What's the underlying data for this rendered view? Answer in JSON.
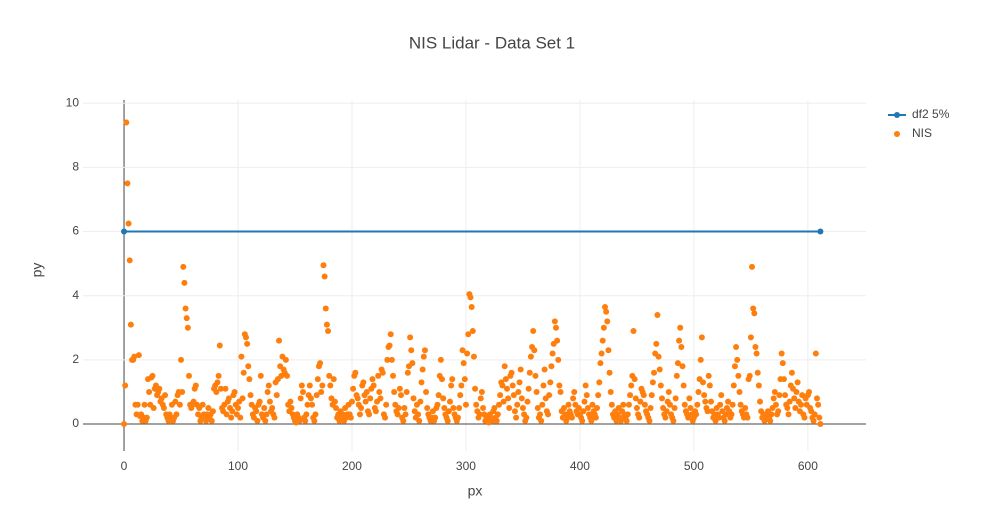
{
  "chart_data": {
    "type": "scatter",
    "title": "NIS Lidar - Data Set 1",
    "x_label": "px",
    "y_label": "py",
    "xlim": [
      -36,
      651
    ],
    "xticks": [
      0,
      100,
      200,
      300,
      400,
      500,
      600
    ],
    "ylim": [
      -0.84,
      10.1
    ],
    "yticks": [
      0,
      2,
      4,
      6,
      8,
      10
    ],
    "grid": true,
    "legend": "top-right",
    "series": [
      {
        "name": "df2 5%",
        "color": "#1f77b4",
        "mode": "lines+markers",
        "x": [
          0,
          611
        ],
        "values": [
          6,
          6
        ]
      },
      {
        "name": "NIS",
        "color": "#ff7f0e",
        "mode": "markers",
        "x": [
          0,
          1,
          2,
          3,
          4,
          5,
          6,
          7,
          8,
          9,
          10,
          11,
          12,
          13,
          14,
          15,
          16,
          17,
          18,
          19,
          20,
          21,
          22,
          23,
          24,
          25,
          26,
          27,
          28,
          29,
          30,
          31,
          32,
          33,
          34,
          35,
          36,
          37,
          38,
          39,
          40,
          41,
          42,
          43,
          44,
          45,
          46,
          47,
          48,
          49,
          50,
          51,
          52,
          53,
          54,
          55,
          56,
          57,
          58,
          59,
          60,
          61,
          62,
          63,
          64,
          65,
          66,
          67,
          68,
          69,
          70,
          71,
          72,
          73,
          74,
          75,
          76,
          77,
          78,
          79,
          80,
          81,
          82,
          83,
          84,
          85,
          86,
          87,
          88,
          89,
          90,
          91,
          92,
          93,
          94,
          95,
          96,
          97,
          98,
          99,
          100,
          101,
          102,
          103,
          104,
          105,
          106,
          107,
          108,
          109,
          110,
          111,
          112,
          113,
          114,
          115,
          116,
          117,
          118,
          119,
          120,
          121,
          122,
          123,
          124,
          125,
          126,
          127,
          128,
          129,
          130,
          131,
          132,
          133,
          134,
          135,
          136,
          137,
          138,
          139,
          140,
          141,
          142,
          143,
          144,
          145,
          146,
          147,
          148,
          149,
          150,
          151,
          152,
          153,
          154,
          155,
          156,
          157,
          158,
          159,
          160,
          161,
          162,
          163,
          164,
          165,
          166,
          167,
          168,
          169,
          170,
          171,
          172,
          173,
          174,
          175,
          176,
          177,
          178,
          179,
          180,
          181,
          182,
          183,
          184,
          185,
          186,
          187,
          188,
          189,
          190,
          191,
          192,
          193,
          194,
          195,
          196,
          197,
          198,
          199,
          200,
          201,
          202,
          203,
          204,
          205,
          206,
          207,
          208,
          209,
          210,
          211,
          212,
          213,
          214,
          215,
          216,
          217,
          218,
          219,
          220,
          221,
          222,
          223,
          224,
          225,
          226,
          227,
          228,
          229,
          230,
          231,
          232,
          233,
          234,
          235,
          236,
          237,
          238,
          239,
          240,
          241,
          242,
          243,
          244,
          245,
          246,
          247,
          248,
          249,
          250,
          251,
          252,
          253,
          254,
          255,
          256,
          257,
          258,
          259,
          260,
          261,
          262,
          263,
          264,
          265,
          266,
          267,
          268,
          269,
          270,
          271,
          272,
          273,
          274,
          275,
          276,
          277,
          278,
          279,
          280,
          281,
          282,
          283,
          284,
          285,
          286,
          287,
          288,
          289,
          290,
          291,
          292,
          293,
          294,
          295,
          296,
          297,
          298,
          299,
          300,
          301,
          302,
          303,
          304,
          305,
          306,
          307,
          308,
          309,
          310,
          311,
          312,
          313,
          314,
          315,
          316,
          317,
          318,
          319,
          320,
          321,
          322,
          323,
          324,
          325,
          326,
          327,
          328,
          329,
          330,
          331,
          332,
          333,
          334,
          335,
          336,
          337,
          338,
          339,
          340,
          341,
          342,
          343,
          344,
          345,
          346,
          347,
          348,
          349,
          350,
          351,
          352,
          353,
          354,
          355,
          356,
          357,
          358,
          359,
          360,
          361,
          362,
          363,
          364,
          365,
          366,
          367,
          368,
          369,
          370,
          371,
          372,
          373,
          374,
          375,
          376,
          377,
          378,
          379,
          380,
          381,
          382,
          383,
          384,
          385,
          386,
          387,
          388,
          389,
          390,
          391,
          392,
          393,
          394,
          395,
          396,
          397,
          398,
          399,
          400,
          401,
          402,
          403,
          404,
          405,
          406,
          407,
          408,
          409,
          410,
          411,
          412,
          413,
          414,
          415,
          416,
          417,
          418,
          419,
          420,
          421,
          422,
          423,
          424,
          425,
          426,
          427,
          428,
          429,
          430,
          431,
          432,
          433,
          434,
          435,
          436,
          437,
          438,
          439,
          440,
          441,
          442,
          443,
          444,
          445,
          446,
          447,
          448,
          449,
          450,
          451,
          452,
          453,
          454,
          455,
          456,
          457,
          458,
          459,
          460,
          461,
          462,
          463,
          464,
          465,
          466,
          467,
          468,
          469,
          470,
          471,
          472,
          473,
          474,
          475,
          476,
          477,
          478,
          479,
          480,
          481,
          482,
          483,
          484,
          485,
          486,
          487,
          488,
          489,
          490,
          491,
          492,
          493,
          494,
          495,
          496,
          497,
          498,
          499,
          500,
          501,
          502,
          503,
          504,
          505,
          506,
          507,
          508,
          509,
          510,
          511,
          512,
          513,
          514,
          515,
          516,
          517,
          518,
          519,
          520,
          521,
          522,
          523,
          524,
          525,
          526,
          527,
          528,
          529,
          530,
          531,
          532,
          533,
          534,
          535,
          536,
          537,
          538,
          539,
          540,
          541,
          542,
          543,
          544,
          545,
          546,
          547,
          548,
          549,
          550,
          551,
          552,
          553,
          554,
          555,
          556,
          557,
          558,
          559,
          560,
          561,
          562,
          563,
          564,
          565,
          566,
          567,
          568,
          569,
          570,
          571,
          572,
          573,
          574,
          575,
          576,
          577,
          578,
          579,
          580,
          581,
          582,
          583,
          584,
          585,
          586,
          587,
          588,
          589,
          590,
          591,
          592,
          593,
          594,
          595,
          596,
          597,
          598,
          599,
          600,
          601,
          602,
          603,
          604,
          605,
          606,
          607,
          608,
          609,
          610,
          611
        ],
        "values": [
          0,
          1.2,
          9.4,
          7.5,
          6.25,
          5.1,
          3.1,
          2.0,
          2.0,
          2.1,
          0.6,
          0.3,
          0.6,
          2.15,
          0.25,
          0.3,
          0.1,
          0.2,
          0.6,
          0.1,
          0.2,
          1.4,
          1.0,
          0.6,
          1.45,
          1.5,
          0.5,
          1.1,
          1.2,
          0.9,
          1.0,
          1.1,
          0.7,
          0.8,
          0.6,
          0.5,
          0.9,
          0.3,
          0.2,
          0.1,
          0.3,
          0.2,
          0.6,
          0.1,
          0.2,
          0.7,
          0.3,
          0.9,
          1.0,
          0.6,
          2.0,
          1.0,
          4.9,
          4.4,
          3.6,
          3.3,
          3.0,
          1.5,
          0.6,
          0.5,
          0.6,
          0.7,
          1.1,
          1.2,
          0.6,
          0.3,
          0.5,
          0.1,
          0.2,
          0.6,
          0.3,
          0.2,
          0.1,
          0.3,
          0.5,
          0.2,
          0.3,
          0.1,
          0.4,
          1.1,
          1.2,
          1.0,
          1.3,
          1.5,
          2.45,
          1.1,
          0.5,
          0.4,
          0.6,
          1.1,
          0.3,
          0.7,
          0.8,
          0.5,
          0.2,
          0.4,
          0.9,
          1.0,
          0.6,
          0.3,
          0.5,
          0.7,
          0.2,
          2.1,
          0.8,
          1.6,
          2.8,
          2.7,
          2.5,
          1.8,
          1.4,
          0.9,
          0.6,
          0.3,
          0.2,
          0.5,
          0.4,
          0.1,
          0.6,
          0.7,
          1.5,
          0.3,
          0.2,
          0.5,
          0.1,
          0.3,
          1.0,
          1.2,
          0.7,
          0.4,
          0.5,
          0.3,
          0.2,
          1.3,
          0.9,
          1.4,
          2.6,
          1.8,
          1.5,
          2.1,
          1.7,
          1.6,
          2.0,
          1.5,
          0.6,
          0.4,
          0.7,
          0.5,
          0.3,
          0.2,
          0.1,
          0.05,
          0.3,
          0.2,
          0.1,
          0.8,
          1.2,
          1.0,
          0.2,
          0.1,
          0.3,
          0.6,
          0.9,
          1.2,
          0.8,
          0.6,
          0.2,
          0.1,
          0.3,
          0.9,
          1.4,
          1.8,
          1.9,
          1.0,
          1.2,
          4.95,
          4.6,
          3.6,
          3.1,
          2.9,
          1.5,
          1.2,
          0.8,
          0.6,
          1.4,
          0.7,
          0.5,
          0.2,
          0.3,
          0.1,
          0.4,
          0.2,
          0.3,
          0.1,
          0.5,
          0.2,
          0.3,
          0.6,
          0.3,
          0.2,
          0.7,
          1.1,
          1.5,
          1.6,
          0.9,
          0.8,
          0.6,
          0.3,
          0.5,
          1.2,
          1.3,
          0.9,
          0.7,
          1.0,
          0.4,
          0.3,
          0.8,
          1.1,
          1.4,
          1.2,
          0.5,
          0.4,
          0.7,
          1.5,
          1.0,
          0.8,
          1.7,
          1.6,
          0.3,
          0.2,
          0.6,
          2.0,
          2.4,
          2.45,
          2.8,
          2.0,
          1.5,
          1.0,
          0.6,
          0.4,
          0.3,
          0.5,
          1.1,
          0.9,
          0.2,
          0.1,
          0.5,
          0.3,
          1.0,
          1.6,
          1.8,
          2.7,
          2.3,
          1.9,
          0.8,
          0.4,
          0.2,
          0.6,
          0.3,
          0.1,
          0.7,
          1.3,
          1.7,
          2.1,
          2.3,
          1.0,
          0.5,
          0.3,
          0.2,
          0.1,
          0.2,
          0.4,
          0.1,
          0.2,
          0.5,
          0.6,
          0.9,
          1.5,
          2.0,
          1.4,
          0.8,
          0.5,
          0.3,
          0.2,
          0.1,
          0.4,
          0.7,
          1.2,
          1.4,
          0.5,
          0.3,
          0.2,
          0.1,
          0.2,
          0.5,
          0.9,
          1.2,
          2.3,
          1.9,
          1.4,
          0.6,
          2.2,
          2.8,
          4.05,
          3.95,
          3.65,
          2.9,
          2.1,
          1.1,
          0.6,
          0.4,
          0.2,
          0.3,
          0.8,
          1.0,
          0.5,
          0.3,
          0.1,
          0.2,
          0.1,
          0.05,
          0.3,
          0.2,
          0.1,
          0.4,
          0.5,
          0.2,
          0.1,
          0.3,
          0.6,
          0.9,
          1.3,
          1.2,
          0.7,
          1.8,
          1.4,
          1.1,
          0.8,
          0.5,
          1.5,
          1.6,
          1.2,
          0.9,
          0.4,
          0.2,
          0.6,
          1.0,
          1.3,
          1.7,
          0.8,
          0.5,
          0.3,
          0.1,
          0.2,
          0.7,
          1.1,
          1.6,
          2.1,
          2.4,
          2.9,
          2.3,
          1.5,
          1.0,
          0.5,
          0.2,
          0.3,
          0.1,
          0.6,
          1.2,
          1.7,
          0.8,
          0.4,
          0.3,
          0.9,
          1.3,
          1.8,
          2.2,
          2.5,
          3.2,
          3.0,
          2.6,
          2.0,
          1.2,
          1.0,
          0.4,
          0.2,
          0.5,
          0.3,
          0.1,
          0.2,
          0.6,
          0.4,
          0.3,
          0.2,
          0.8,
          1.0,
          0.6,
          0.4,
          0.3,
          0.5,
          0.3,
          0.2,
          0.1,
          0.4,
          0.7,
          1.2,
          0.9,
          0.5,
          0.3,
          0.2,
          0.1,
          0.6,
          0.4,
          0.3,
          0.2,
          0.5,
          0.9,
          1.3,
          1.9,
          2.2,
          2.6,
          3.0,
          3.65,
          3.5,
          3.2,
          2.3,
          1.6,
          1.0,
          0.6,
          0.3,
          0.2,
          0.4,
          0.1,
          0.3,
          0.5,
          0.2,
          0.1,
          0.4,
          0.6,
          0.3,
          0.2,
          0.1,
          0.3,
          0.6,
          0.9,
          1.2,
          1.5,
          2.9,
          1.4,
          0.8,
          0.5,
          0.3,
          0.2,
          0.7,
          1.1,
          1.0,
          0.9,
          0.6,
          0.4,
          0.3,
          0.2,
          0.1,
          0.5,
          0.9,
          1.3,
          1.6,
          2.2,
          2.5,
          3.4,
          2.1,
          1.7,
          1.2,
          0.8,
          0.5,
          0.3,
          0.2,
          0.4,
          0.7,
          1.0,
          0.6,
          0.3,
          0.2,
          0.1,
          0.5,
          0.8,
          1.5,
          1.9,
          2.6,
          3.0,
          2.4,
          1.8,
          1.2,
          0.6,
          0.4,
          0.3,
          0.2,
          0.8,
          0.5,
          0.3,
          0.1,
          0.2,
          0.4,
          0.3,
          0.6,
          1.0,
          1.4,
          2.0,
          2.7,
          1.3,
          0.9,
          0.7,
          0.5,
          0.4,
          1.5,
          1.2,
          0.7,
          0.4,
          0.2,
          0.3,
          0.1,
          0.5,
          0.3,
          0.2,
          0.6,
          0.9,
          0.4,
          0.2,
          0.1,
          0.3,
          0.5,
          0.7,
          0.4,
          0.2,
          0.3,
          0.6,
          1.2,
          1.8,
          2.4,
          2.0,
          1.5,
          1.0,
          0.6,
          0.4,
          0.3,
          0.2,
          0.5,
          0.3,
          0.2,
          1.4,
          1.5,
          2.7,
          4.9,
          3.6,
          3.45,
          2.4,
          2.2,
          1.6,
          1.2,
          0.7,
          0.4,
          0.2,
          0.3,
          0.1,
          0.2,
          0.3,
          0.4,
          0.2,
          0.1,
          0.3,
          0.5,
          0.8,
          1.0,
          0.6,
          0.3,
          0.4,
          0.9,
          1.4,
          2.2,
          1.9,
          1.4,
          0.9,
          0.6,
          0.5,
          0.3,
          0.7,
          1.2,
          1.6,
          1.1,
          0.8,
          0.5,
          1.0,
          1.3,
          0.7,
          0.4,
          0.6,
          0.9,
          0.3,
          0.2,
          0.8,
          0.6,
          0.9,
          1.0,
          0.5,
          0.4,
          0.2,
          0.1,
          0.3,
          2.2,
          0.8,
          0.6,
          0.2,
          0.0
        ]
      }
    ]
  }
}
